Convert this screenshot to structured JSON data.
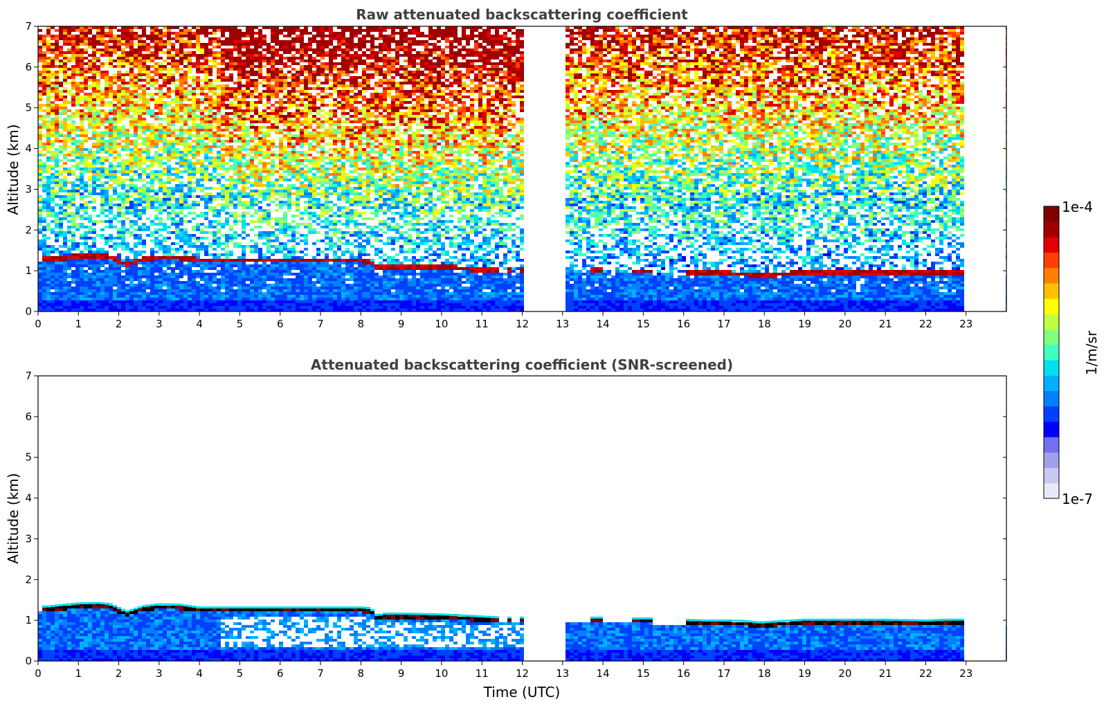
{
  "chart_data": [
    {
      "type": "heatmap",
      "title": "Raw attenuated backscattering coefficient",
      "xlabel": "",
      "ylabel": "Altitude (km)",
      "xlim": [
        0,
        24
      ],
      "ylim": [
        0,
        7
      ],
      "xticks": [
        0,
        1,
        2,
        3,
        4,
        5,
        6,
        7,
        8,
        9,
        10,
        11,
        12,
        13,
        14,
        15,
        16,
        17,
        18,
        19,
        20,
        21,
        22,
        23
      ],
      "yticks": [
        0,
        1,
        2,
        3,
        4,
        5,
        6,
        7
      ],
      "data_gaps_utc": [
        [
          12.05,
          13.05
        ],
        [
          23.0,
          24.0
        ]
      ],
      "background": {
        "near_surface_km": [
          0,
          1
        ],
        "low": [
          1,
          3
        ],
        "mid": [
          3,
          5
        ],
        "upper": [
          5,
          7
        ]
      },
      "layer_top_km": {
        "x": [
          0,
          0.5,
          1.0,
          1.5,
          1.8,
          2.2,
          2.6,
          3.0,
          3.5,
          4.0,
          5.0,
          6.0,
          7.0,
          8.0,
          8.25,
          8.4,
          8.6,
          9.0,
          10.0,
          11.0,
          11.5,
          12.0,
          13.5,
          14.0,
          14.8,
          15.2,
          16.0,
          16.5,
          17.0,
          17.5,
          17.9,
          18.5,
          19.0,
          20.0,
          21.0,
          22.0,
          22.5,
          23.0
        ],
        "y": [
          1.25,
          1.3,
          1.35,
          1.36,
          1.33,
          1.15,
          1.28,
          1.33,
          1.32,
          1.25,
          1.25,
          1.25,
          1.25,
          1.25,
          1.23,
          1.05,
          1.1,
          1.1,
          1.08,
          1.03,
          1.0,
          1.0,
          1.0,
          1.0,
          0.98,
          0.98,
          0.95,
          0.93,
          0.93,
          0.92,
          0.88,
          0.92,
          0.95,
          0.95,
          0.95,
          0.93,
          0.95,
          0.95
        ]
      },
      "layer_segments_utc": [
        [
          0.1,
          11.4
        ],
        [
          11.6,
          11.75
        ],
        [
          11.9,
          12.05
        ],
        [
          13.7,
          14.0
        ],
        [
          14.7,
          15.2
        ],
        [
          16.1,
          23.0
        ]
      ]
    },
    {
      "type": "heatmap",
      "title": "Attenuated backscattering coefficient (SNR-screened)",
      "xlabel": "Time (UTC)",
      "ylabel": "Altitude (km)",
      "xlim": [
        0,
        24
      ],
      "ylim": [
        0,
        7
      ],
      "xticks": [
        0,
        1,
        2,
        3,
        4,
        5,
        6,
        7,
        8,
        9,
        10,
        11,
        12,
        13,
        14,
        15,
        16,
        17,
        18,
        19,
        20,
        21,
        22,
        23
      ],
      "yticks": [
        0,
        1,
        2,
        3,
        4,
        5,
        6,
        7
      ],
      "data_gaps_utc": [
        [
          12.05,
          13.05
        ],
        [
          23.0,
          24.0
        ]
      ]
    }
  ],
  "colorbar": {
    "min_label": "1e-7",
    "max_label": "1e-4",
    "unit": "1/m/sr",
    "colors": [
      "#e8e8f8",
      "#c8c8f0",
      "#a0a0ec",
      "#7070f0",
      "#0000ff",
      "#0040ff",
      "#0080ff",
      "#00b0ff",
      "#00e0f0",
      "#40ffc0",
      "#80ff80",
      "#c0ff40",
      "#ffff00",
      "#ffc000",
      "#ff8000",
      "#ff4000",
      "#e00000",
      "#a00000",
      "#800000"
    ]
  }
}
